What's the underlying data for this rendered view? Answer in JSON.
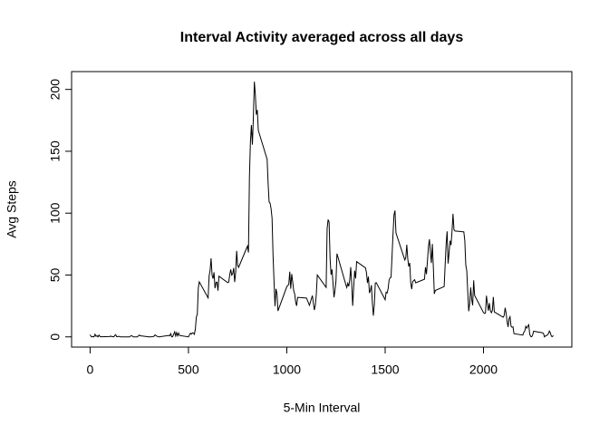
{
  "chart_data": {
    "type": "line",
    "title": "Interval Activity averaged across all days",
    "xlabel": "5-Min Interval",
    "ylabel": "Avg Steps",
    "color": "#000000",
    "x": [
      0,
      5,
      10,
      15,
      20,
      25,
      30,
      35,
      40,
      45,
      50,
      55,
      100,
      105,
      110,
      115,
      120,
      125,
      130,
      135,
      140,
      145,
      150,
      155,
      200,
      210,
      220,
      230,
      240,
      250,
      255,
      300,
      320,
      325,
      330,
      340,
      350,
      400,
      405,
      410,
      415,
      420,
      430,
      435,
      440,
      445,
      450,
      455,
      500,
      505,
      510,
      515,
      520,
      525,
      530,
      535,
      540,
      545,
      550,
      555,
      600,
      605,
      610,
      615,
      620,
      625,
      630,
      635,
      640,
      645,
      650,
      655,
      700,
      705,
      710,
      715,
      720,
      725,
      730,
      735,
      740,
      745,
      750,
      755,
      800,
      805,
      810,
      815,
      820,
      825,
      830,
      835,
      840,
      845,
      850,
      855,
      900,
      905,
      910,
      915,
      920,
      925,
      930,
      935,
      940,
      945,
      950,
      955,
      1000,
      1010,
      1015,
      1020,
      1025,
      1030,
      1035,
      1040,
      1045,
      1050,
      1055,
      1100,
      1115,
      1130,
      1140,
      1145,
      1150,
      1155,
      1200,
      1205,
      1210,
      1215,
      1220,
      1225,
      1230,
      1240,
      1245,
      1250,
      1255,
      1300,
      1305,
      1310,
      1315,
      1320,
      1325,
      1330,
      1335,
      1340,
      1345,
      1350,
      1355,
      1400,
      1405,
      1410,
      1415,
      1420,
      1425,
      1430,
      1435,
      1440,
      1445,
      1450,
      1455,
      1500,
      1505,
      1510,
      1515,
      1520,
      1525,
      1530,
      1535,
      1540,
      1545,
      1550,
      1555,
      1600,
      1605,
      1610,
      1615,
      1620,
      1625,
      1630,
      1635,
      1640,
      1645,
      1650,
      1655,
      1700,
      1705,
      1710,
      1715,
      1720,
      1725,
      1730,
      1735,
      1740,
      1745,
      1750,
      1755,
      1800,
      1805,
      1810,
      1815,
      1820,
      1825,
      1830,
      1835,
      1840,
      1845,
      1850,
      1855,
      1900,
      1905,
      1910,
      1915,
      1920,
      1925,
      1930,
      1935,
      1940,
      1945,
      1950,
      1955,
      2000,
      2005,
      2010,
      2015,
      2020,
      2025,
      2030,
      2035,
      2040,
      2045,
      2050,
      2055,
      2100,
      2105,
      2110,
      2115,
      2120,
      2125,
      2130,
      2135,
      2140,
      2145,
      2150,
      2155,
      2200,
      2205,
      2210,
      2215,
      2220,
      2225,
      2230,
      2235,
      2240,
      2245,
      2250,
      2255,
      2300,
      2305,
      2310,
      2315,
      2320,
      2325,
      2330,
      2335,
      2340,
      2345,
      2350,
      2355
    ],
    "values": [
      1.7,
      0.3,
      0.1,
      0.2,
      0.1,
      2.1,
      0.5,
      0.9,
      0,
      1.5,
      0.3,
      0.1,
      0.3,
      0.7,
      0.2,
      0.3,
      0,
      1.1,
      1.8,
      0.2,
      0.2,
      0.4,
      0.3,
      0,
      0,
      1.1,
      0,
      0,
      0,
      1.5,
      0.9,
      0,
      0.2,
      0.6,
      1.6,
      0.5,
      0,
      1.2,
      0.9,
      2.6,
      0,
      0.3,
      4.1,
      0.7,
      3.5,
      0.8,
      3.1,
      1.1,
      0,
      1.6,
      3,
      2.2,
      3.3,
      3,
      2.1,
      6.1,
      16,
      18.3,
      39.5,
      44.5,
      31.5,
      49.3,
      53.8,
      63.5,
      50,
      47.1,
      52.2,
      39.3,
      44,
      44.2,
      37.4,
      49,
      43.8,
      44.4,
      50.5,
      54.5,
      49.9,
      51,
      55.7,
      44.3,
      52.3,
      69.5,
      57.8,
      56.2,
      73.4,
      68.2,
      129.4,
      157.5,
      171.2,
      155.4,
      177.3,
      206.2,
      195.9,
      179.6,
      183.4,
      167,
      143.5,
      124,
      109.1,
      108.1,
      103.7,
      96,
      66.2,
      45.2,
      24.8,
      38.8,
      35,
      21,
      40.6,
      42.4,
      52.7,
      38.9,
      50.8,
      44.3,
      37.4,
      34.7,
      28.3,
      25.1,
      31.9,
      31.4,
      25.5,
      33.4,
      21.7,
      25.6,
      34.3,
      50,
      40,
      87.7,
      94.8,
      92.8,
      63.4,
      50.2,
      54.5,
      32,
      37.7,
      45.1,
      67.3,
      42.3,
      39.9,
      43.3,
      40.9,
      46.2,
      56.4,
      42.8,
      25.1,
      39.9,
      53.5,
      47.3,
      60.8,
      55.8,
      51.9,
      43.6,
      48.7,
      35.5,
      37.5,
      41.8,
      27.5,
      17.1,
      26.1,
      43.6,
      43.8,
      30,
      36.1,
      35.5,
      38.8,
      45.9,
      47.8,
      48.1,
      65.3,
      82.9,
      98.7,
      102.1,
      84,
      62.1,
      64.1,
      74.5,
      63.2,
      56.9,
      59.8,
      43.9,
      38.6,
      44.7,
      45.5,
      46.2,
      43.7,
      46.6,
      56.3,
      50.7,
      61.2,
      72.7,
      78.9,
      68.9,
      59.7,
      75.1,
      56.5,
      34.8,
      37.5,
      40.7,
      58,
      74.7,
      85.3,
      59.3,
      67.8,
      77.7,
      74.2,
      85.3,
      99.5,
      86.6,
      85.6,
      84.9,
      77.8,
      58,
      53.4,
      36.3,
      20.7,
      27.4,
      40,
      30.2,
      25.5,
      45.7,
      33.5,
      19.6,
      19,
      19.3,
      33.3,
      26.8,
      21.2,
      27.3,
      21.3,
      19.5,
      21.3,
      32.3,
      20.2,
      15.9,
      17.2,
      23.5,
      19.2,
      12.5,
      8,
      14.7,
      16.3,
      8.7,
      7.8,
      8.1,
      2.6,
      1.5,
      3.7,
      4.8,
      8.5,
      7.1,
      8.7,
      9.8,
      2.2,
      0.3,
      0.1,
      1.6,
      4.6,
      3.3,
      2.8,
      0,
      0.8,
      1,
      1.6,
      2.6,
      4.7,
      3.3,
      0.6,
      0.2,
      1.1
    ],
    "xlim": [
      -94.2,
      2449.2
    ],
    "xticks": [
      0,
      500,
      1000,
      1500,
      2000
    ],
    "ylim": [
      -8.25,
      214.4
    ],
    "yticks": [
      0,
      50,
      100,
      150,
      200
    ]
  }
}
